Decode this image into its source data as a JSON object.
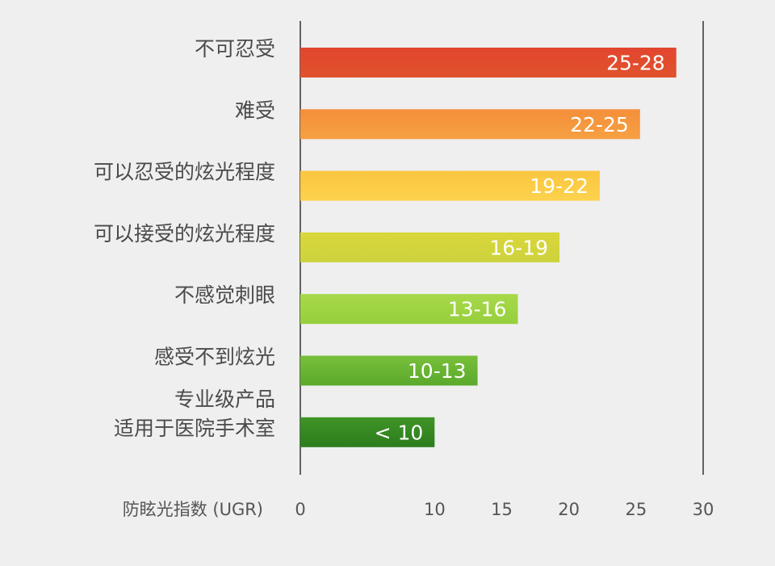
{
  "chart_data": {
    "type": "bar",
    "orientation": "horizontal",
    "xlabel": "防眩光指数 (UGR)",
    "xlim": [
      0,
      30
    ],
    "xticks": [
      0,
      10,
      15,
      20,
      25,
      30
    ],
    "grid": false,
    "legend": "none",
    "categories": [
      [
        "不可忍受"
      ],
      [
        "难受"
      ],
      [
        "可以忍受的炫光程度"
      ],
      [
        "可以接受的炫光程度"
      ],
      [
        "不感觉刺眼"
      ],
      [
        "感受不到炫光"
      ],
      [
        "专业级产品",
        "适用于医院手术室"
      ]
    ],
    "values": [
      28,
      25.3,
      22.3,
      19.3,
      16.2,
      13.2,
      10
    ],
    "bar_labels": [
      "25-28",
      "22-25",
      "19-22",
      "16-19",
      "13-16",
      "10-13",
      "< 10"
    ],
    "colors": [
      [
        "#e2452e",
        "#e0532c"
      ],
      [
        "#f48f3a",
        "#f6a043"
      ],
      [
        "#fbc640",
        "#fcd24c"
      ],
      [
        "#d9d63a",
        "#cdd33d"
      ],
      [
        "#a8d94a",
        "#96cf3c"
      ],
      [
        "#79bf3b",
        "#5aa92b"
      ],
      [
        "#3f9426",
        "#2c7d1d"
      ]
    ]
  }
}
